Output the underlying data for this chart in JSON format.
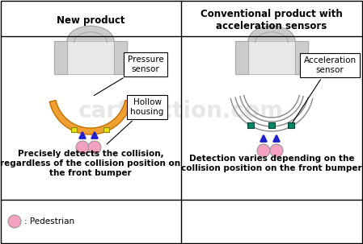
{
  "title_left": "New product",
  "title_right": "Conventional product with\nacceleration sensors",
  "label_pressure": "Pressure\nsensor",
  "label_hollow": "Hollow\nhousing",
  "label_acceleration": "Acceleration\nsensor",
  "caption_left": "Precisely detects the collision,\nregardless of the collision position on\nthe front bumper",
  "caption_right": "Detection varies depending on the\ncollision position on the front bumper",
  "legend_label": ": Pedestrian",
  "bg_color": "#ffffff",
  "bumper_fill_left": "#f0a030",
  "bumper_edge_left": "#c07000",
  "sensor_color_left": "#e8e000",
  "sensor_edge_left": "#888800",
  "sensor_color_right": "#008866",
  "sensor_edge_right": "#004433",
  "arrow_color": "#2222cc",
  "pedestrian_color": "#f4a0c0",
  "pedestrian_edge": "#999999",
  "car_body_color": "#cccccc",
  "car_body_edge": "#aaaaaa",
  "car_inner_color": "#e8e8e8",
  "watermark_color": "#dddddd",
  "title_fontsize": 8.5,
  "label_fontsize": 7.5,
  "caption_fontsize": 7.5
}
